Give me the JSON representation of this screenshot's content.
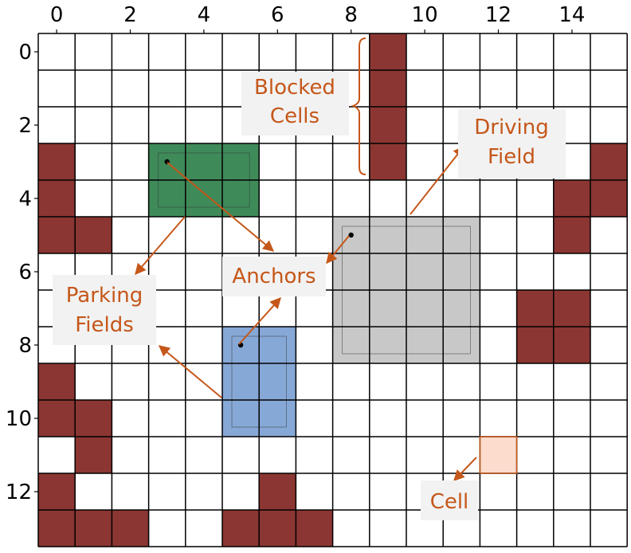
{
  "grid": {
    "cols": 16,
    "rows": 14,
    "x_ticks": [
      0,
      2,
      4,
      6,
      8,
      10,
      12,
      14
    ],
    "y_ticks": [
      0,
      2,
      4,
      6,
      8,
      10,
      12
    ]
  },
  "colors": {
    "blocked": "#8b3632",
    "parking_green": "#3f8a59",
    "parking_blue": "#86a8d6",
    "driving_gray": "#c8c8c8",
    "cell_highlight": "#fcdccc",
    "annotation": "#c5571a",
    "label_bg": "#f2f2f2",
    "grid_line": "#000000"
  },
  "blocked_cells": [
    [
      9,
      0
    ],
    [
      9,
      1
    ],
    [
      9,
      2
    ],
    [
      9,
      3
    ],
    [
      0,
      3
    ],
    [
      0,
      4
    ],
    [
      0,
      5
    ],
    [
      1,
      5
    ],
    [
      15,
      3
    ],
    [
      14,
      4
    ],
    [
      15,
      4
    ],
    [
      14,
      5
    ],
    [
      13,
      7
    ],
    [
      14,
      7
    ],
    [
      13,
      8
    ],
    [
      14,
      8
    ],
    [
      0,
      9
    ],
    [
      0,
      10
    ],
    [
      1,
      10
    ],
    [
      1,
      11
    ],
    [
      0,
      12
    ],
    [
      6,
      12
    ],
    [
      0,
      13
    ],
    [
      1,
      13
    ],
    [
      2,
      13
    ],
    [
      5,
      13
    ],
    [
      6,
      13
    ],
    [
      7,
      13
    ]
  ],
  "fields": [
    {
      "name": "parking-field-green",
      "kind": "parking",
      "col": 3,
      "row": 3,
      "w": 3,
      "h": 2,
      "color_key": "parking_green",
      "anchor": [
        3,
        3
      ]
    },
    {
      "name": "parking-field-blue",
      "kind": "parking",
      "col": 5,
      "row": 8,
      "w": 2,
      "h": 3,
      "color_key": "parking_blue",
      "anchor": [
        5,
        8
      ]
    },
    {
      "name": "driving-field-gray",
      "kind": "driving",
      "col": 8,
      "row": 5,
      "w": 4,
      "h": 4,
      "color_key": "driving_gray",
      "anchor": [
        8,
        5
      ]
    }
  ],
  "highlight_cell": {
    "col": 12,
    "row": 11
  },
  "labels": {
    "blocked_cells": [
      "Blocked",
      "Cells"
    ],
    "driving_field": [
      "Driving",
      "Field"
    ],
    "anchors": [
      "Anchors"
    ],
    "parking_fields": [
      "Parking",
      "Fields"
    ],
    "cell": [
      "Cell"
    ]
  }
}
